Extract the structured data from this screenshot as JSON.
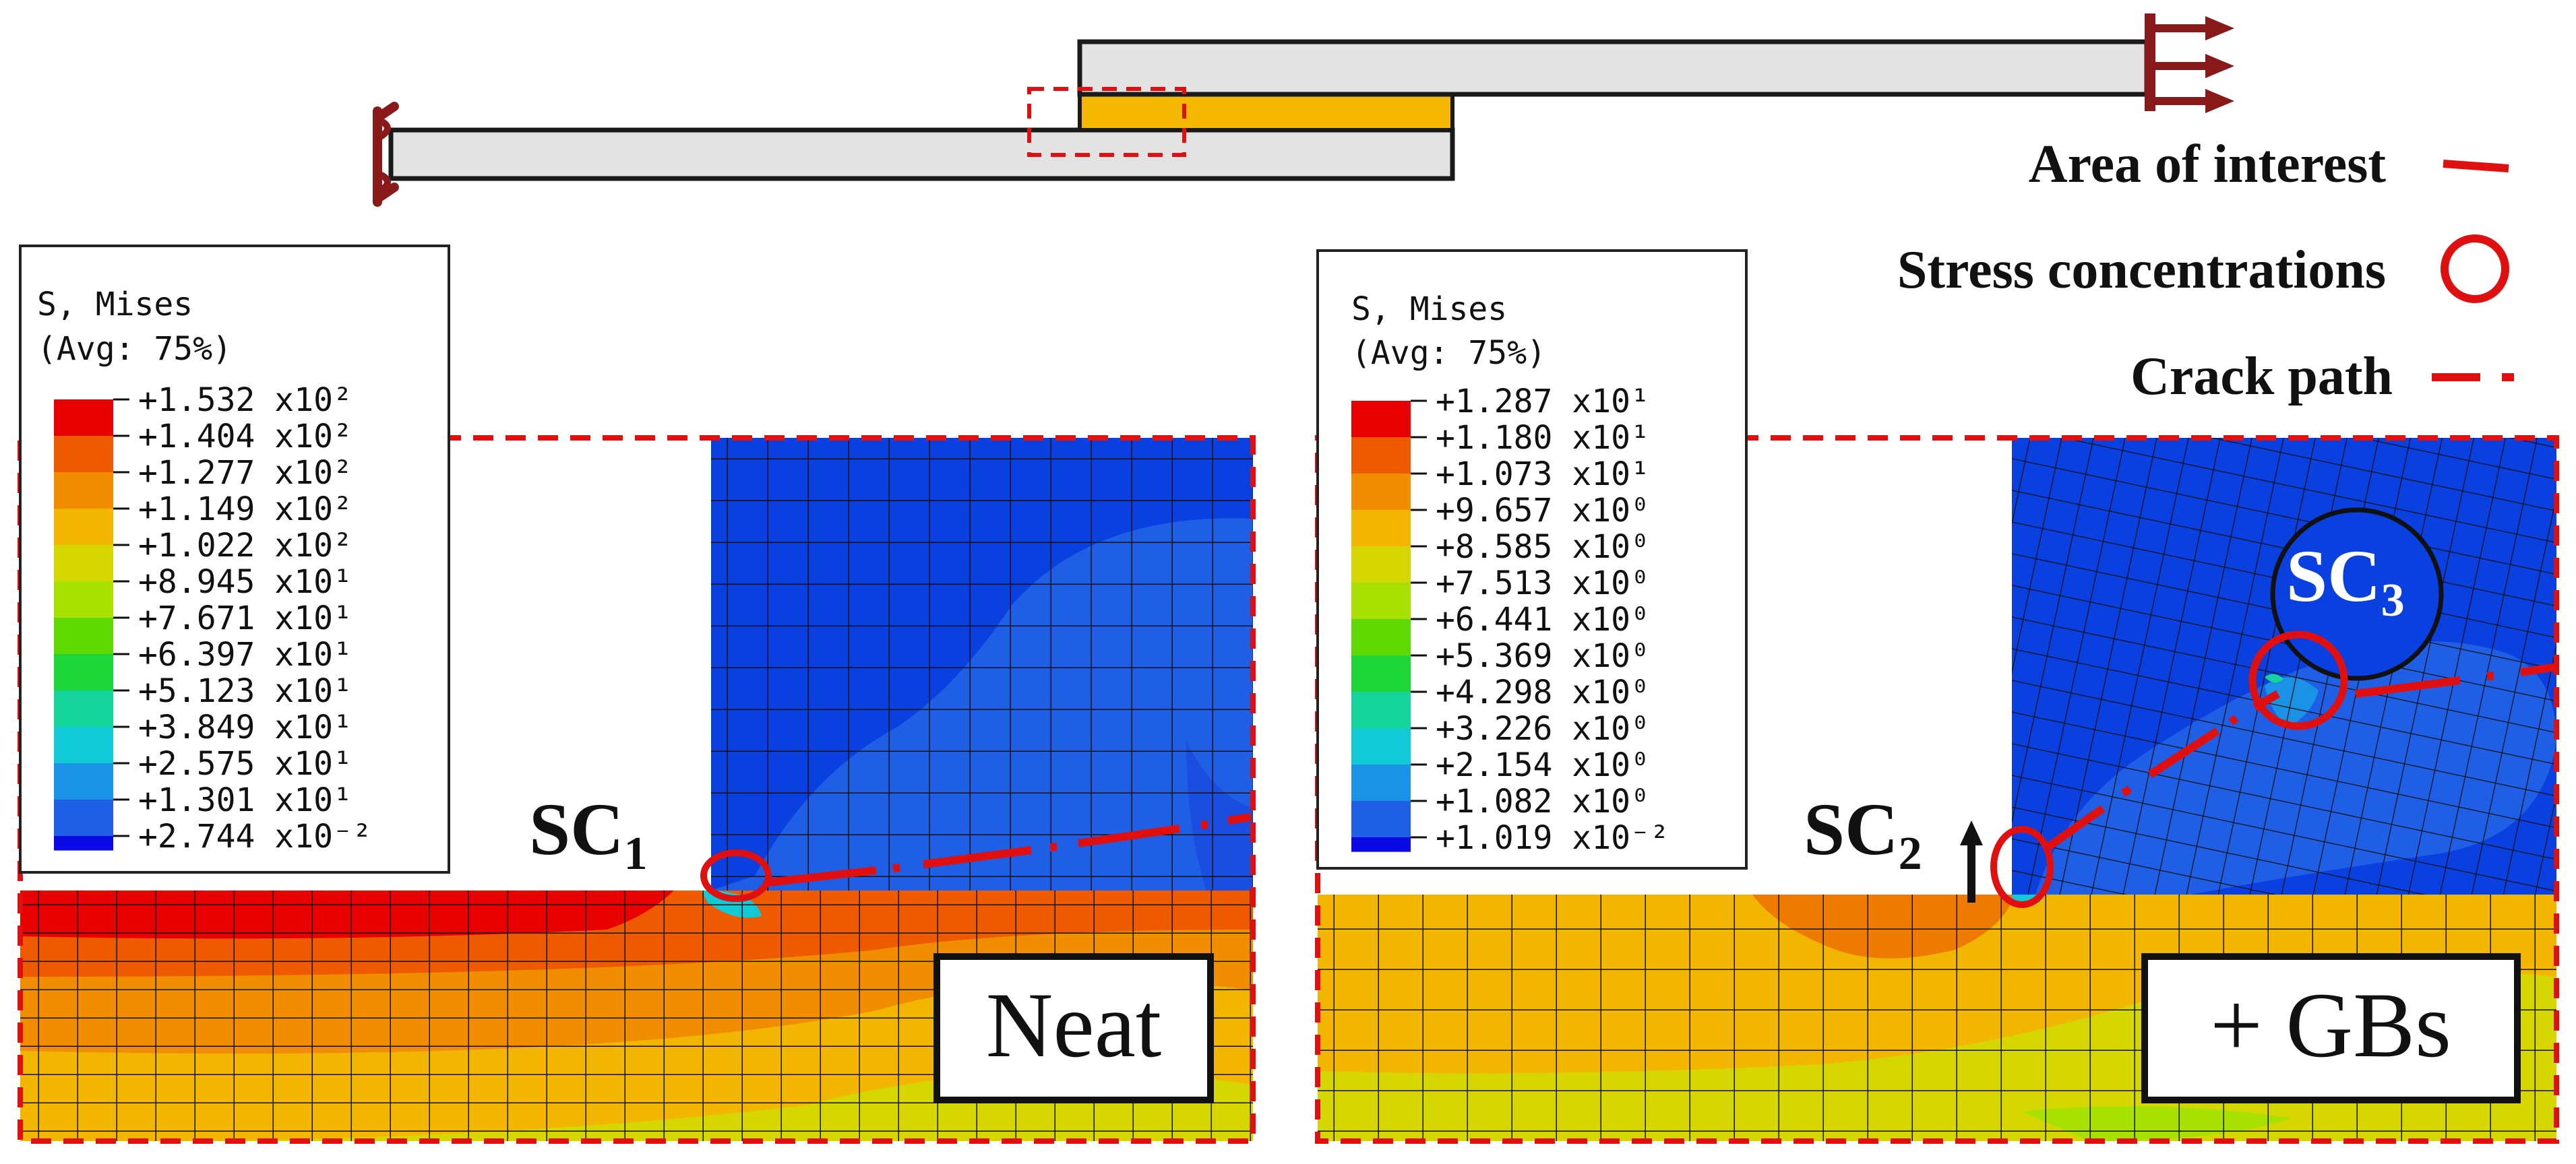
{
  "legend_key": {
    "area_of_interest": "Area of interest",
    "stress_concentrations": "Stress concentrations",
    "crack_path": "Crack path"
  },
  "colors": {
    "annotation_red": "#e01010",
    "adhesive_orange": "#f5b800",
    "adherend_fill": "#e3e3e3",
    "support_red": "#8a1a1a",
    "contour_blue": "#2457d9"
  },
  "panels": [
    {
      "id": "neat",
      "title": "Neat",
      "legend_header": "S, Mises",
      "legend_sub": "(Avg: 75%)",
      "legend_values": [
        "+1.532 x10²",
        "+1.404 x10²",
        "+1.277 x10²",
        "+1.149 x10²",
        "+1.022 x10²",
        "+8.945 x10¹",
        "+7.671 x10¹",
        "+6.397 x10¹",
        "+5.123 x10¹",
        "+3.849 x10¹",
        "+2.575 x10¹",
        "+1.301 x10¹",
        "+2.744 x10⁻²"
      ],
      "sc_labels": [
        {
          "base": "SC",
          "sub": "1"
        }
      ]
    },
    {
      "id": "gbs",
      "title": "+ GBs",
      "legend_header": "S, Mises",
      "legend_sub": "(Avg: 75%)",
      "legend_values": [
        "+1.287 x10¹",
        "+1.180 x10¹",
        "+1.073 x10¹",
        "+9.657 x10⁰",
        "+8.585 x10⁰",
        "+7.513 x10⁰",
        "+6.441 x10⁰",
        "+5.369 x10⁰",
        "+4.298 x10⁰",
        "+3.226 x10⁰",
        "+2.154 x10⁰",
        "+1.082 x10⁰",
        "+1.019 x10⁻²"
      ],
      "sc_labels": [
        {
          "base": "SC",
          "sub": "2"
        },
        {
          "base": "SC",
          "sub": "3"
        }
      ]
    }
  ],
  "contour_colors": [
    "#e80000",
    "#ee5a00",
    "#f18e00",
    "#f2b500",
    "#d6d600",
    "#a8e000",
    "#5fd900",
    "#1fd63a",
    "#14d49b",
    "#12c9d6",
    "#1a92e6",
    "#1f5fe6",
    "#0a0ae6"
  ]
}
